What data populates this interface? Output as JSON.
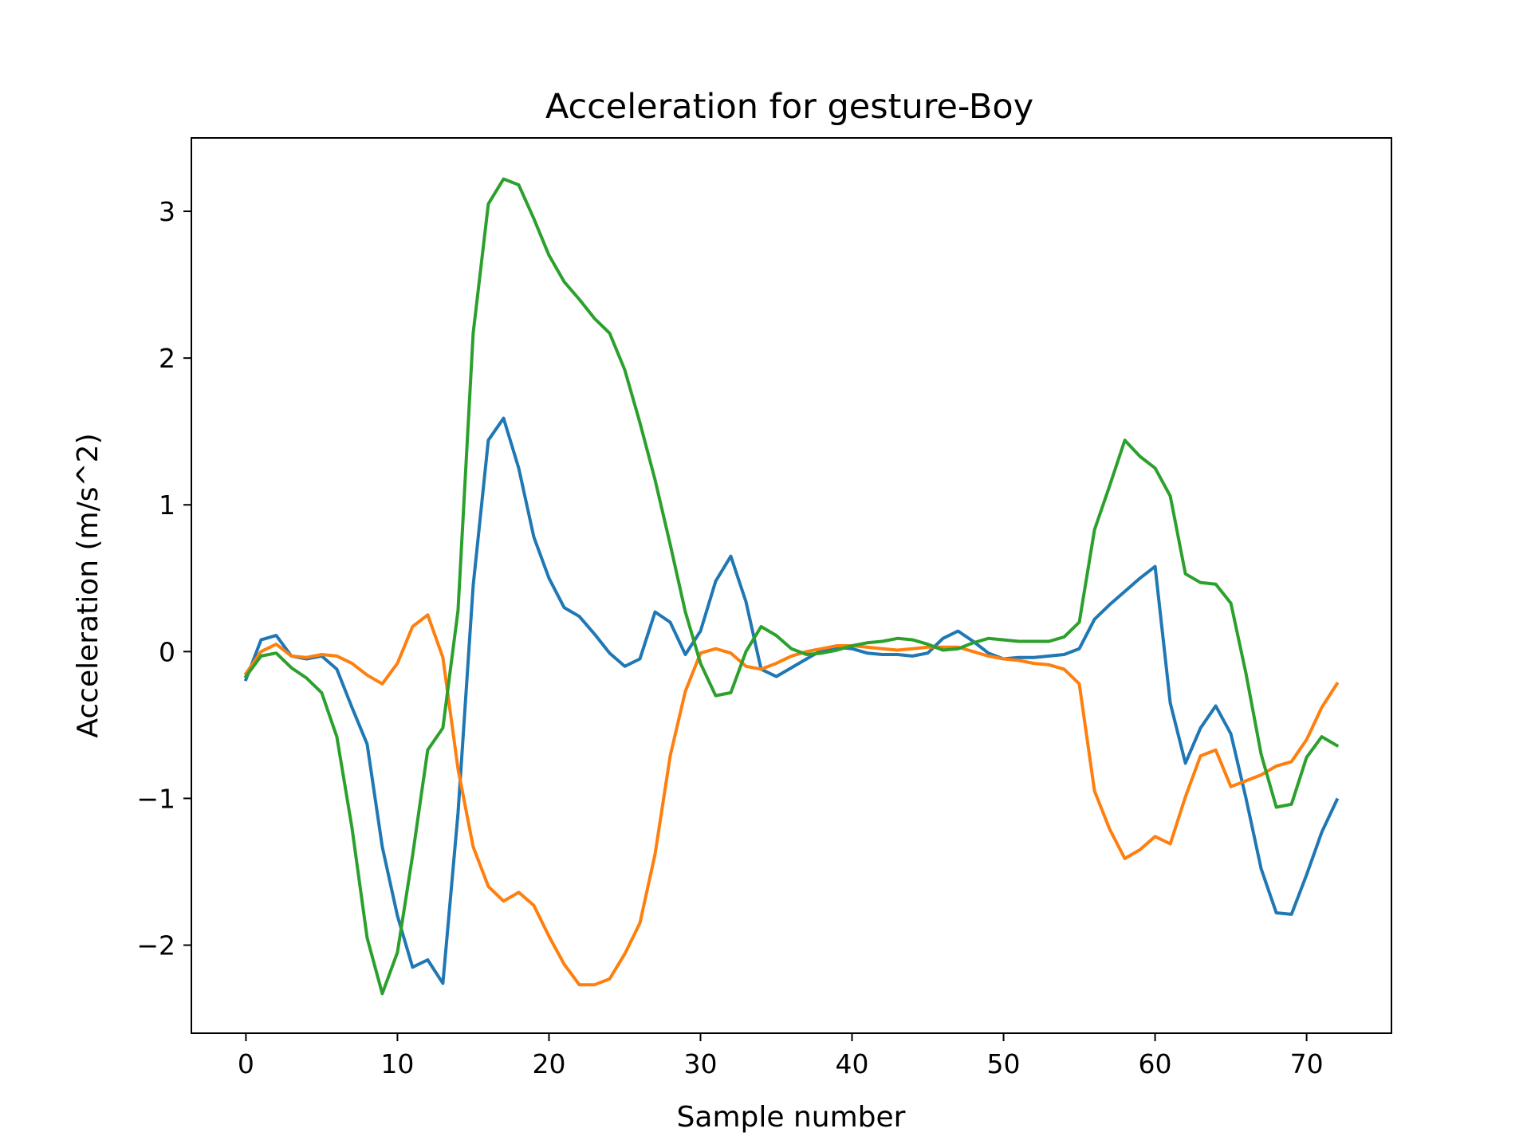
{
  "chart_data": {
    "type": "line",
    "title": "Acceleration for gesture-Boy",
    "xlabel": "Sample number",
    "ylabel": "Acceleration (m/s^2)",
    "xlim": [
      -3.6,
      75.6
    ],
    "ylim": [
      -2.6,
      3.5
    ],
    "xticks": [
      0,
      10,
      20,
      30,
      40,
      50,
      60,
      70
    ],
    "yticks": [
      -2,
      -1,
      0,
      1,
      2,
      3
    ],
    "ytick_labels": [
      "−2",
      "−1",
      "0",
      "1",
      "2",
      "3"
    ],
    "grid": false,
    "x": [
      0,
      1,
      2,
      3,
      4,
      5,
      6,
      7,
      8,
      9,
      10,
      11,
      12,
      13,
      14,
      15,
      16,
      17,
      18,
      19,
      20,
      21,
      22,
      23,
      24,
      25,
      26,
      27,
      28,
      29,
      30,
      31,
      32,
      33,
      34,
      35,
      36,
      37,
      38,
      39,
      40,
      41,
      42,
      43,
      44,
      45,
      46,
      47,
      48,
      49,
      50,
      51,
      52,
      53,
      54,
      55,
      56,
      57,
      58,
      59,
      60,
      61,
      62,
      63,
      64,
      65,
      66,
      67,
      68,
      69,
      70,
      71,
      72
    ],
    "series": [
      {
        "color": "#1f77b4",
        "values": [
          -0.19,
          0.08,
          0.11,
          -0.03,
          -0.05,
          -0.03,
          -0.12,
          -0.38,
          -0.63,
          -1.33,
          -1.8,
          -2.15,
          -2.1,
          -2.26,
          -1.1,
          0.45,
          1.44,
          1.59,
          1.25,
          0.78,
          0.5,
          0.3,
          0.24,
          0.12,
          -0.01,
          -0.1,
          -0.05,
          0.27,
          0.2,
          -0.02,
          0.14,
          0.48,
          0.65,
          0.34,
          -0.12,
          -0.17,
          -0.11,
          -0.05,
          0.01,
          0.03,
          0.02,
          -0.01,
          -0.02,
          -0.02,
          -0.03,
          -0.01,
          0.09,
          0.14,
          0.07,
          -0.01,
          -0.05,
          -0.04,
          -0.04,
          -0.03,
          -0.02,
          0.02,
          0.22,
          0.32,
          0.41,
          0.5,
          0.58,
          -0.35,
          -0.76,
          -0.52,
          -0.37,
          -0.56,
          -1.0,
          -1.48,
          -1.78,
          -1.79,
          -1.52,
          -1.23,
          -1.01
        ]
      },
      {
        "color": "#ff7f0e",
        "values": [
          -0.15,
          0.0,
          0.05,
          -0.03,
          -0.04,
          -0.02,
          -0.03,
          -0.08,
          -0.16,
          -0.22,
          -0.08,
          0.17,
          0.25,
          -0.04,
          -0.8,
          -1.33,
          -1.6,
          -1.7,
          -1.64,
          -1.73,
          -1.94,
          -2.13,
          -2.27,
          -2.27,
          -2.23,
          -2.06,
          -1.85,
          -1.38,
          -0.71,
          -0.27,
          -0.01,
          0.02,
          -0.01,
          -0.1,
          -0.12,
          -0.08,
          -0.03,
          0.0,
          0.02,
          0.04,
          0.04,
          0.03,
          0.02,
          0.01,
          0.02,
          0.03,
          0.03,
          0.03,
          0.0,
          -0.03,
          -0.05,
          -0.06,
          -0.08,
          -0.09,
          -0.12,
          -0.22,
          -0.95,
          -1.21,
          -1.41,
          -1.35,
          -1.26,
          -1.31,
          -0.99,
          -0.71,
          -0.67,
          -0.92,
          -0.88,
          -0.84,
          -0.78,
          -0.75,
          -0.6,
          -0.38,
          -0.22
        ]
      },
      {
        "color": "#2ca02c",
        "values": [
          -0.17,
          -0.03,
          -0.01,
          -0.11,
          -0.18,
          -0.28,
          -0.58,
          -1.2,
          -1.95,
          -2.33,
          -2.05,
          -1.39,
          -0.67,
          -0.52,
          0.28,
          2.17,
          3.05,
          3.22,
          3.18,
          2.95,
          2.7,
          2.52,
          2.4,
          2.27,
          2.17,
          1.92,
          1.56,
          1.17,
          0.73,
          0.27,
          -0.08,
          -0.3,
          -0.28,
          0.0,
          0.17,
          0.11,
          0.02,
          -0.02,
          -0.01,
          0.01,
          0.04,
          0.06,
          0.07,
          0.09,
          0.08,
          0.05,
          0.01,
          0.02,
          0.06,
          0.09,
          0.08,
          0.07,
          0.07,
          0.07,
          0.1,
          0.2,
          0.83,
          1.13,
          1.44,
          1.33,
          1.25,
          1.06,
          0.53,
          0.47,
          0.46,
          0.33,
          -0.15,
          -0.7,
          -1.06,
          -1.04,
          -0.72,
          -0.58,
          -0.64
        ]
      }
    ]
  }
}
